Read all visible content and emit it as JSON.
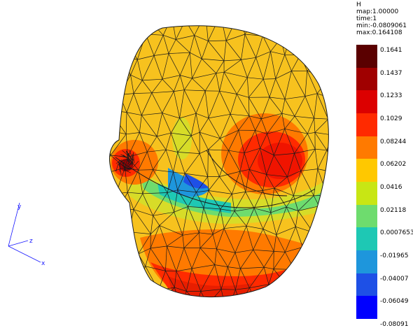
{
  "legend": {
    "variable": "H",
    "map": "map:1.00000",
    "time": "time:1",
    "min": "min:-0.0809061",
    "max": "max:0.164108",
    "ticks": [
      "0.1641",
      "0.1437",
      "0.1233",
      "0.1029",
      "0.08244",
      "0.06202",
      "0.0416",
      "0.02118",
      "0.0007653",
      "-0.01965",
      "-0.04007",
      "-0.06049",
      "-0.08091"
    ],
    "colors": [
      "#5a0000",
      "#a00000",
      "#dc0000",
      "#ff2a00",
      "#ff7a00",
      "#ffc800",
      "#c8e614",
      "#6edc6e",
      "#1ec8b4",
      "#1e96dc",
      "#1e50e6",
      "#0000ff"
    ]
  },
  "axes": {
    "y": "y",
    "z": "z",
    "x": "x",
    "color": "#1a1aff"
  },
  "mesh": {
    "edge_color": "#1a1a1a",
    "base_color": "#f7c21e"
  }
}
